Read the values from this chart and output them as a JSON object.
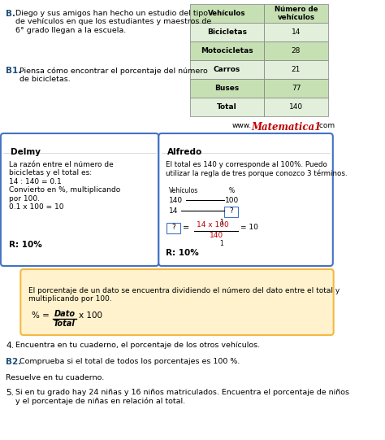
{
  "bg_color": "#ffffff",
  "table": {
    "header": [
      "Vehículos",
      "Número de\nvehículos"
    ],
    "rows": [
      [
        "Bicicletas",
        "14"
      ],
      [
        "Motocicletas",
        "28"
      ],
      [
        "Carros",
        "21"
      ],
      [
        "Buses",
        "77"
      ],
      [
        "Total",
        "140"
      ]
    ],
    "header_bg": "#c6e0b4",
    "row_bgs": [
      "#e2efda",
      "#c6e0b4",
      "#e2efda",
      "#c6e0b4",
      "#e2efda"
    ]
  },
  "colors": {
    "blue_label": "#1f4e79",
    "box_border_blue": "#4472c4",
    "tip_bg": "#fff2cc",
    "tip_border": "#f4b942",
    "red": "#c00000",
    "gray_line": "#cccccc",
    "table_border": "#7f7f7f"
  },
  "delmy_title": "Delmy",
  "delmy_body": "La razón entre el número de\nbicicletas y el total es:\n14 : 140 = 0.1\nConvierto en %, multiplicando\npor 100.\n0.1 x 100 = 10",
  "delmy_answer": "R: 10%",
  "alfredo_title": "Alfredo",
  "alfredo_intro": "El total es 140 y corresponde al 100%. Puedo\nutilizar la regla de tres porque conozco 3 términos.",
  "alfredo_answer": "R: 10%",
  "tip_text": "El porcentaje de un dato se encuentra dividiendo el número del dato entre el total y\nmultiplicando por 100.",
  "item4": "Encuentra en tu cuaderno, el porcentaje de los otros vehículos.",
  "item_B2": "Comprueba si el total de todos los porcentajes es 100 %.",
  "resuelve": "Resuelve en tu cuaderno.",
  "item5": "Si en tu grado hay 24 niñas y 16 niños matriculados. Encuentra el porcentaje de niños\ny el porcentaje de niñas en relación al total."
}
